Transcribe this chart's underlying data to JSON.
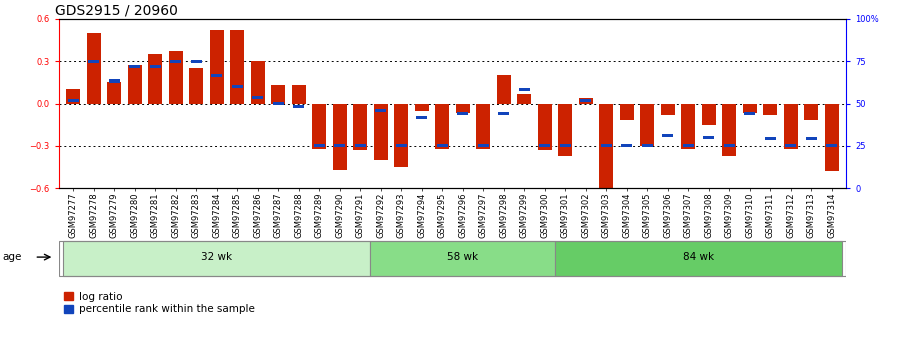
{
  "title": "GDS2915 / 20960",
  "samples": [
    "GSM97277",
    "GSM97278",
    "GSM97279",
    "GSM97280",
    "GSM97281",
    "GSM97282",
    "GSM97283",
    "GSM97284",
    "GSM97285",
    "GSM97286",
    "GSM97287",
    "GSM97288",
    "GSM97289",
    "GSM97290",
    "GSM97291",
    "GSM97292",
    "GSM97293",
    "GSM97294",
    "GSM97295",
    "GSM97296",
    "GSM97297",
    "GSM97298",
    "GSM97299",
    "GSM97300",
    "GSM97301",
    "GSM97302",
    "GSM97303",
    "GSM97304",
    "GSM97305",
    "GSM97306",
    "GSM97307",
    "GSM97308",
    "GSM97309",
    "GSM97310",
    "GSM97311",
    "GSM97312",
    "GSM97313",
    "GSM97314"
  ],
  "log_ratio": [
    0.1,
    0.5,
    0.15,
    0.27,
    0.35,
    0.37,
    0.25,
    0.52,
    0.52,
    0.3,
    0.13,
    0.13,
    -0.32,
    -0.47,
    -0.33,
    -0.4,
    -0.45,
    -0.05,
    -0.32,
    -0.07,
    -0.32,
    0.2,
    0.07,
    -0.33,
    -0.37,
    0.04,
    -0.62,
    -0.12,
    -0.3,
    -0.08,
    -0.32,
    -0.15,
    -0.37,
    -0.07,
    -0.08,
    -0.32,
    -0.12,
    -0.48
  ],
  "percentile": [
    0.02,
    0.3,
    0.16,
    0.26,
    0.26,
    0.3,
    0.3,
    0.2,
    0.12,
    0.04,
    0.0,
    -0.02,
    -0.3,
    -0.3,
    -0.3,
    -0.05,
    -0.3,
    -0.1,
    -0.3,
    -0.07,
    -0.3,
    -0.07,
    0.1,
    -0.3,
    -0.3,
    0.02,
    -0.3,
    -0.3,
    -0.3,
    -0.23,
    -0.3,
    -0.24,
    -0.3,
    -0.07,
    -0.25,
    -0.3,
    -0.25,
    -0.3
  ],
  "bar_color": "#cc2200",
  "blue_color": "#1144bb",
  "bar_width": 0.7,
  "ylim": [
    -0.6,
    0.6
  ],
  "yticks": [
    -0.6,
    -0.3,
    0.0,
    0.3,
    0.6
  ],
  "right_yticks": [
    0,
    25,
    50,
    75,
    100
  ],
  "right_ytick_labels": [
    "0",
    "25",
    "50",
    "75",
    "100%"
  ],
  "hline_values": [
    -0.3,
    0.0,
    0.3
  ],
  "title_fontsize": 10,
  "tick_fontsize": 6,
  "label_fontsize": 7.5,
  "legend_fontsize": 7.5,
  "age_label": "age",
  "legend_items": [
    "log ratio",
    "percentile rank within the sample"
  ],
  "group_labels": [
    "32 wk",
    "58 wk",
    "84 wk"
  ],
  "group_starts": [
    0,
    15,
    24
  ],
  "group_ends": [
    15,
    24,
    38
  ],
  "group_colors": [
    "#c8f0c8",
    "#88dd88",
    "#66cc66"
  ]
}
